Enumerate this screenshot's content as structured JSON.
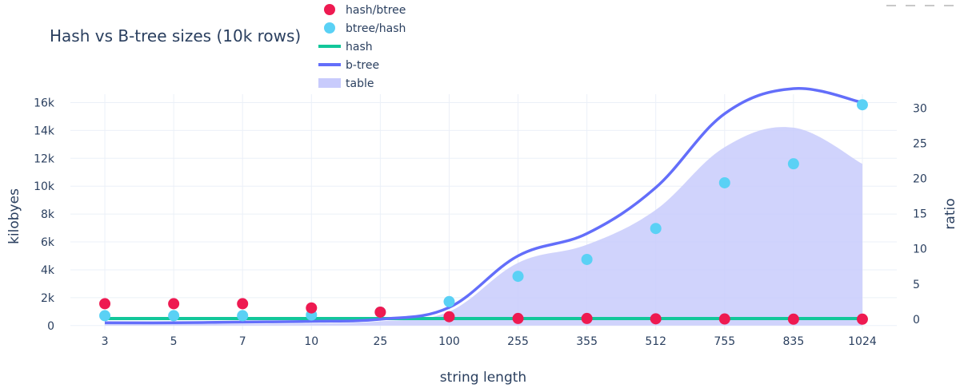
{
  "chart_data": {
    "type": "line",
    "title": "Hash vs B-tree sizes (10k rows)",
    "xlabel": "string length",
    "ylabel": "kilobyes",
    "y2label": "ratio",
    "categories": [
      "3",
      "5",
      "7",
      "10",
      "25",
      "100",
      "255",
      "355",
      "512",
      "755",
      "835",
      "1024"
    ],
    "ylim": [
      -300,
      16600
    ],
    "y_ticks": [
      0,
      2000,
      4000,
      6000,
      8000,
      10000,
      12000,
      14000,
      16000
    ],
    "y_tick_labels": [
      "0",
      "2k",
      "4k",
      "6k",
      "8k",
      "10k",
      "12k",
      "14k",
      "16k"
    ],
    "y2lim": [
      -1.5,
      32
    ],
    "y2_ticks": [
      0,
      5,
      10,
      15,
      20,
      25,
      30
    ],
    "y2_tick_labels": [
      "0",
      "5",
      "10",
      "15",
      "20",
      "25",
      "30"
    ],
    "grid": true,
    "legend_position": "top-center",
    "series": [
      {
        "name": "hash/btree",
        "kind": "scatter",
        "axis": "right",
        "color": "#ee1a51",
        "values": [
          2.2,
          2.2,
          2.2,
          1.6,
          1.0,
          0.35,
          0.1,
          0.1,
          0.05,
          0.03,
          0.0,
          0.0
        ]
      },
      {
        "name": "btree/hash",
        "kind": "scatter",
        "axis": "right",
        "color": "#5ad1f5",
        "values": [
          0.5,
          0.5,
          0.5,
          0.6,
          1.0,
          2.5,
          6.1,
          8.5,
          12.9,
          19.4,
          22.1,
          30.5
        ]
      },
      {
        "name": "hash",
        "kind": "line",
        "axis": "left",
        "color": "#12c79a",
        "values": [
          500,
          500,
          500,
          500,
          500,
          500,
          500,
          500,
          500,
          500,
          500,
          500
        ]
      },
      {
        "name": "b-tree",
        "kind": "line",
        "axis": "left",
        "color": "#636efa",
        "values": [
          200,
          200,
          250,
          300,
          450,
          1300,
          5000,
          6600,
          9900,
          15200,
          17000,
          16000
        ]
      },
      {
        "name": "table",
        "kind": "area",
        "axis": "left",
        "color": "#c8cbfc",
        "values": [
          100,
          100,
          120,
          150,
          300,
          1000,
          4500,
          5800,
          8300,
          12800,
          14200,
          11600
        ]
      }
    ]
  }
}
